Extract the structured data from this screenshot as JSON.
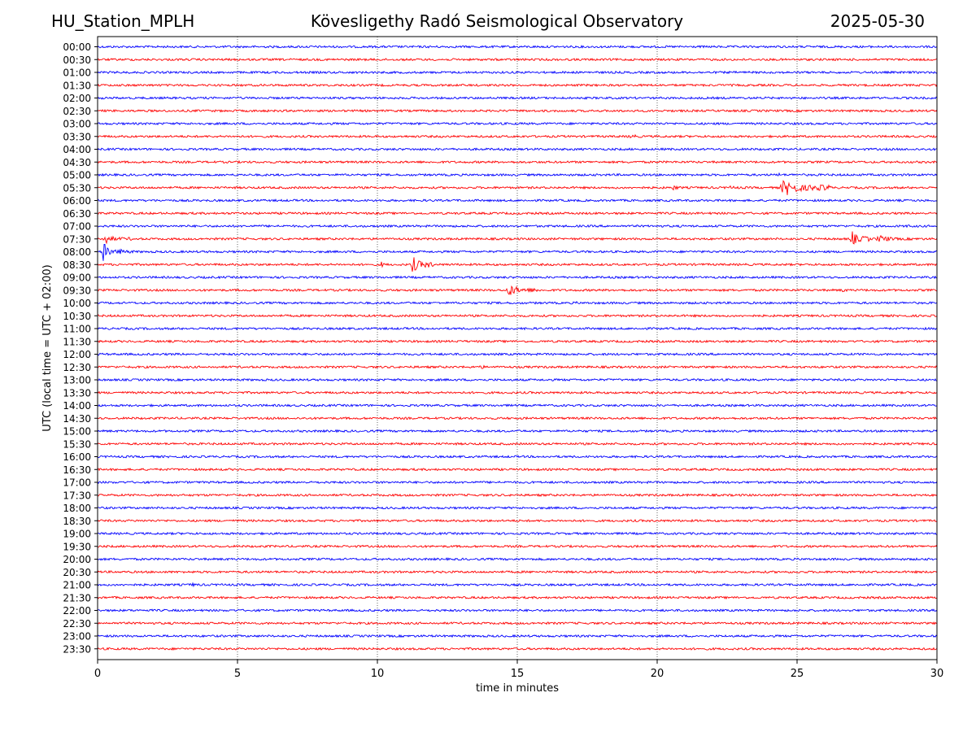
{
  "header": {
    "station": "HU_Station_MPLH",
    "observatory": "Kövesligethy Radó Seismological Observatory",
    "date": "2025-05-30"
  },
  "chart_data": {
    "type": "line",
    "title": "Kövesligethy Radó Seismological Observatory",
    "xlabel": "time in minutes",
    "ylabel": "UTC (local time = UTC + 02:00)",
    "xlim": [
      0,
      30
    ],
    "xticks": [
      "0",
      "5",
      "10",
      "15",
      "20",
      "25",
      "30"
    ],
    "grid": "vertical dotted lines at each 5 minutes",
    "colors": [
      "#0000ff",
      "#ff0000"
    ],
    "rows": [
      "00:00",
      "00:30",
      "01:00",
      "01:30",
      "02:00",
      "02:30",
      "03:00",
      "03:30",
      "04:00",
      "04:30",
      "05:00",
      "05:30",
      "06:00",
      "06:30",
      "07:00",
      "07:30",
      "08:00",
      "08:30",
      "09:00",
      "09:30",
      "10:00",
      "10:30",
      "11:00",
      "11:30",
      "12:00",
      "12:30",
      "13:00",
      "13:30",
      "14:00",
      "14:30",
      "15:00",
      "15:30",
      "16:00",
      "16:30",
      "17:00",
      "17:30",
      "18:00",
      "18:30",
      "19:00",
      "19:30",
      "20:00",
      "20:30",
      "21:00",
      "21:30",
      "22:00",
      "22:30",
      "23:00",
      "23:30"
    ],
    "events": [
      {
        "row": "03:30",
        "t": [
          19.0,
          19.7
        ],
        "amp": 5
      },
      {
        "row": "05:00",
        "t": [
          24.3,
          24.7
        ],
        "amp": 4
      },
      {
        "row": "05:30",
        "t": [
          20.5,
          21.5
        ],
        "amp": 4
      },
      {
        "row": "05:30",
        "t": [
          22.5,
          24.2
        ],
        "amp": 3
      },
      {
        "row": "05:30",
        "t": [
          24.4,
          26.2
        ],
        "amp": 14
      },
      {
        "row": "07:00",
        "t": [
          28.9,
          29.3
        ],
        "amp": 4
      },
      {
        "row": "07:30",
        "t": [
          0.2,
          1.2
        ],
        "amp": 8
      },
      {
        "row": "07:30",
        "t": [
          26.9,
          27.6
        ],
        "amp": 13
      },
      {
        "row": "07:30",
        "t": [
          27.8,
          29.5
        ],
        "amp": 6
      },
      {
        "row": "08:00",
        "t": [
          0.15,
          0.5
        ],
        "amp": 24
      },
      {
        "row": "08:00",
        "t": [
          0.5,
          2.4
        ],
        "amp": 5
      },
      {
        "row": "08:30",
        "t": [
          10.1,
          10.4
        ],
        "amp": 6
      },
      {
        "row": "08:30",
        "t": [
          11.2,
          12.0
        ],
        "amp": 14
      },
      {
        "row": "09:30",
        "t": [
          14.6,
          15.8
        ],
        "amp": 10
      },
      {
        "row": "09:30",
        "t": [
          26.6,
          26.9
        ],
        "amp": 5
      },
      {
        "row": "10:00",
        "t": [
          17.0,
          17.7
        ],
        "amp": 3
      },
      {
        "row": "12:30",
        "t": [
          13.6,
          14.8
        ],
        "amp": 3
      },
      {
        "row": "16:00",
        "t": [
          28.8,
          29.3
        ],
        "amp": 3
      },
      {
        "row": "21:00",
        "t": [
          3.2,
          5.0
        ],
        "amp": 3
      }
    ]
  }
}
